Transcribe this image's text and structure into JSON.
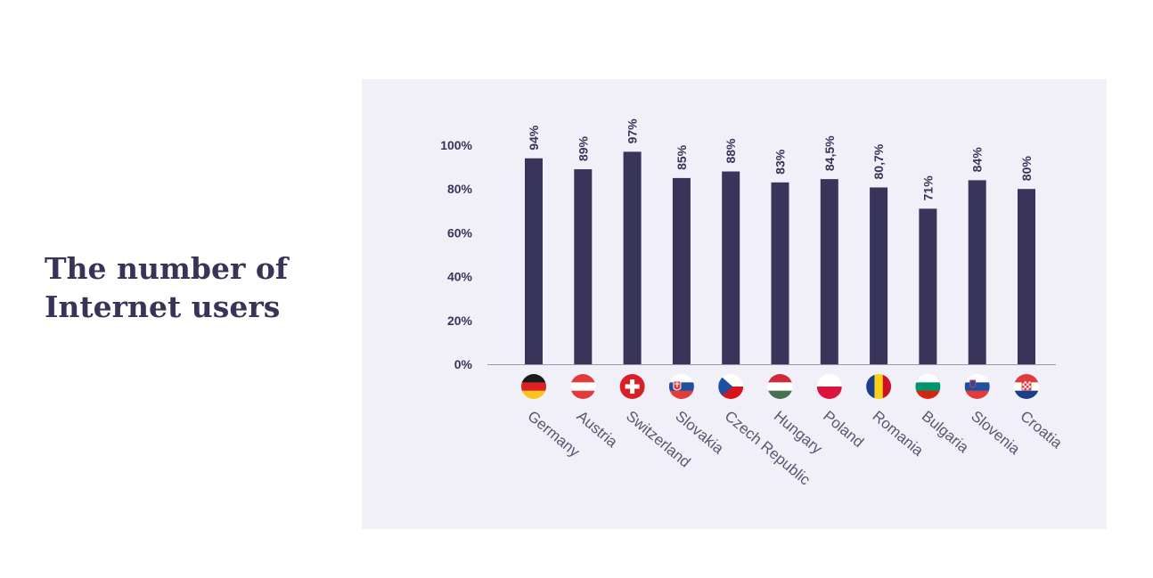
{
  "heading": {
    "line1": "The number of",
    "line2": "Internet users"
  },
  "colors": {
    "bar": "#38345a",
    "axis": "#9a98a8",
    "text": "#3a3358",
    "panel": "#f1f0f9"
  },
  "chart_data": {
    "type": "bar",
    "title": "",
    "xlabel": "",
    "ylabel": "",
    "ylim": [
      0,
      100
    ],
    "yticks": [
      0,
      20,
      40,
      60,
      80,
      100
    ],
    "ytick_labels": [
      "0%",
      "20%",
      "40%",
      "60%",
      "80%",
      "100%"
    ],
    "grid": false,
    "categories": [
      "Germany",
      "Austria",
      "Switzerland",
      "Slovakia",
      "Czech Republic",
      "Hungary",
      "Poland",
      "Romania",
      "Bulgaria",
      "Slovenia",
      "Croatia"
    ],
    "values": [
      94,
      89,
      97,
      85,
      88,
      83,
      84.5,
      80.7,
      71,
      84,
      80
    ],
    "data_labels": [
      "94%",
      "89%",
      "97%",
      "85%",
      "88%",
      "83%",
      "84,5%",
      "80,7%",
      "71%",
      "84%",
      "80%"
    ],
    "flags": [
      "germany-flag-icon",
      "austria-flag-icon",
      "switzerland-flag-icon",
      "slovakia-flag-icon",
      "czech-republic-flag-icon",
      "hungary-flag-icon",
      "poland-flag-icon",
      "romania-flag-icon",
      "bulgaria-flag-icon",
      "slovenia-flag-icon",
      "croatia-flag-icon"
    ]
  }
}
